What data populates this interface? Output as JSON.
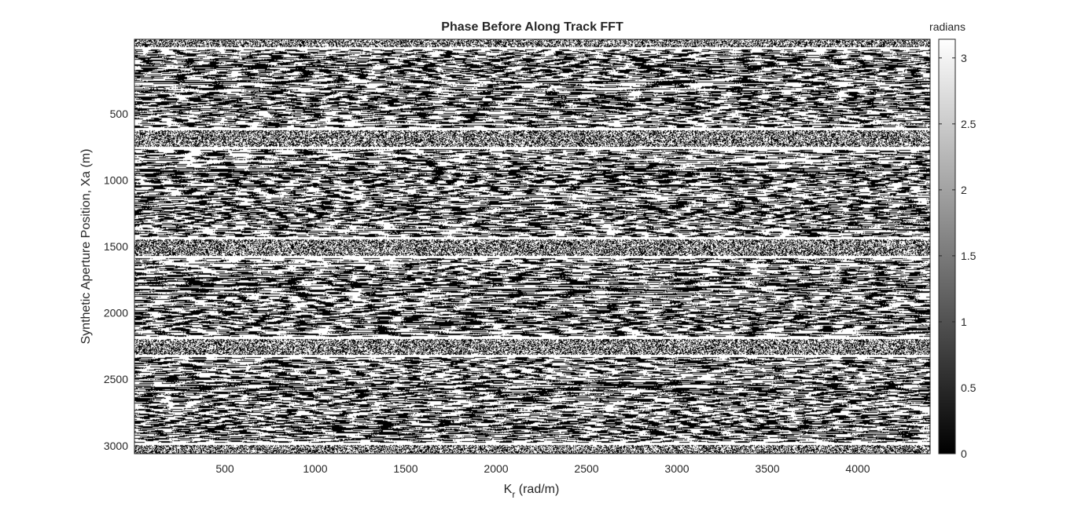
{
  "chart_data": {
    "type": "heatmap",
    "title": "Phase Before Along Track FFT",
    "xlabel": {
      "main": "K",
      "sub": "r",
      "rest": " (rad/m)"
    },
    "ylabel": "Synthetic Aperture Position, Xa (m)",
    "xlim": [
      0,
      4400
    ],
    "ylim": [
      3060,
      -60
    ],
    "x_ticks": [
      500,
      1000,
      1500,
      2000,
      2500,
      3000,
      3500,
      4000
    ],
    "x_tick_labels": [
      "500",
      "1000",
      "1500",
      "2000",
      "2500",
      "3000",
      "3500",
      "4000"
    ],
    "y_ticks": [
      500,
      1000,
      1500,
      2000,
      2500,
      3000
    ],
    "y_tick_labels": [
      "500",
      "1000",
      "1500",
      "2000",
      "2500",
      "3000"
    ],
    "colormap": "gray",
    "colorbar": {
      "label": "radians",
      "clim": [
        0,
        3.14159
      ],
      "ticks": [
        0,
        0.5,
        1,
        1.5,
        2,
        2.5,
        3
      ],
      "tick_labels": [
        "0",
        "0.5",
        "1",
        "1.5",
        "2",
        "2.5",
        "3"
      ]
    },
    "noise_bands_xa": [
      [
        -60,
        10
      ],
      [
        620,
        760
      ],
      [
        1440,
        1580
      ],
      [
        2190,
        2330
      ],
      [
        2990,
        3060
      ]
    ],
    "structured_bands_xa": [
      [
        10,
        620
      ],
      [
        760,
        1440
      ],
      [
        1580,
        2190
      ],
      [
        2330,
        2990
      ]
    ],
    "phase_values": "wrapped phase, effectively binary black/white speckle"
  }
}
